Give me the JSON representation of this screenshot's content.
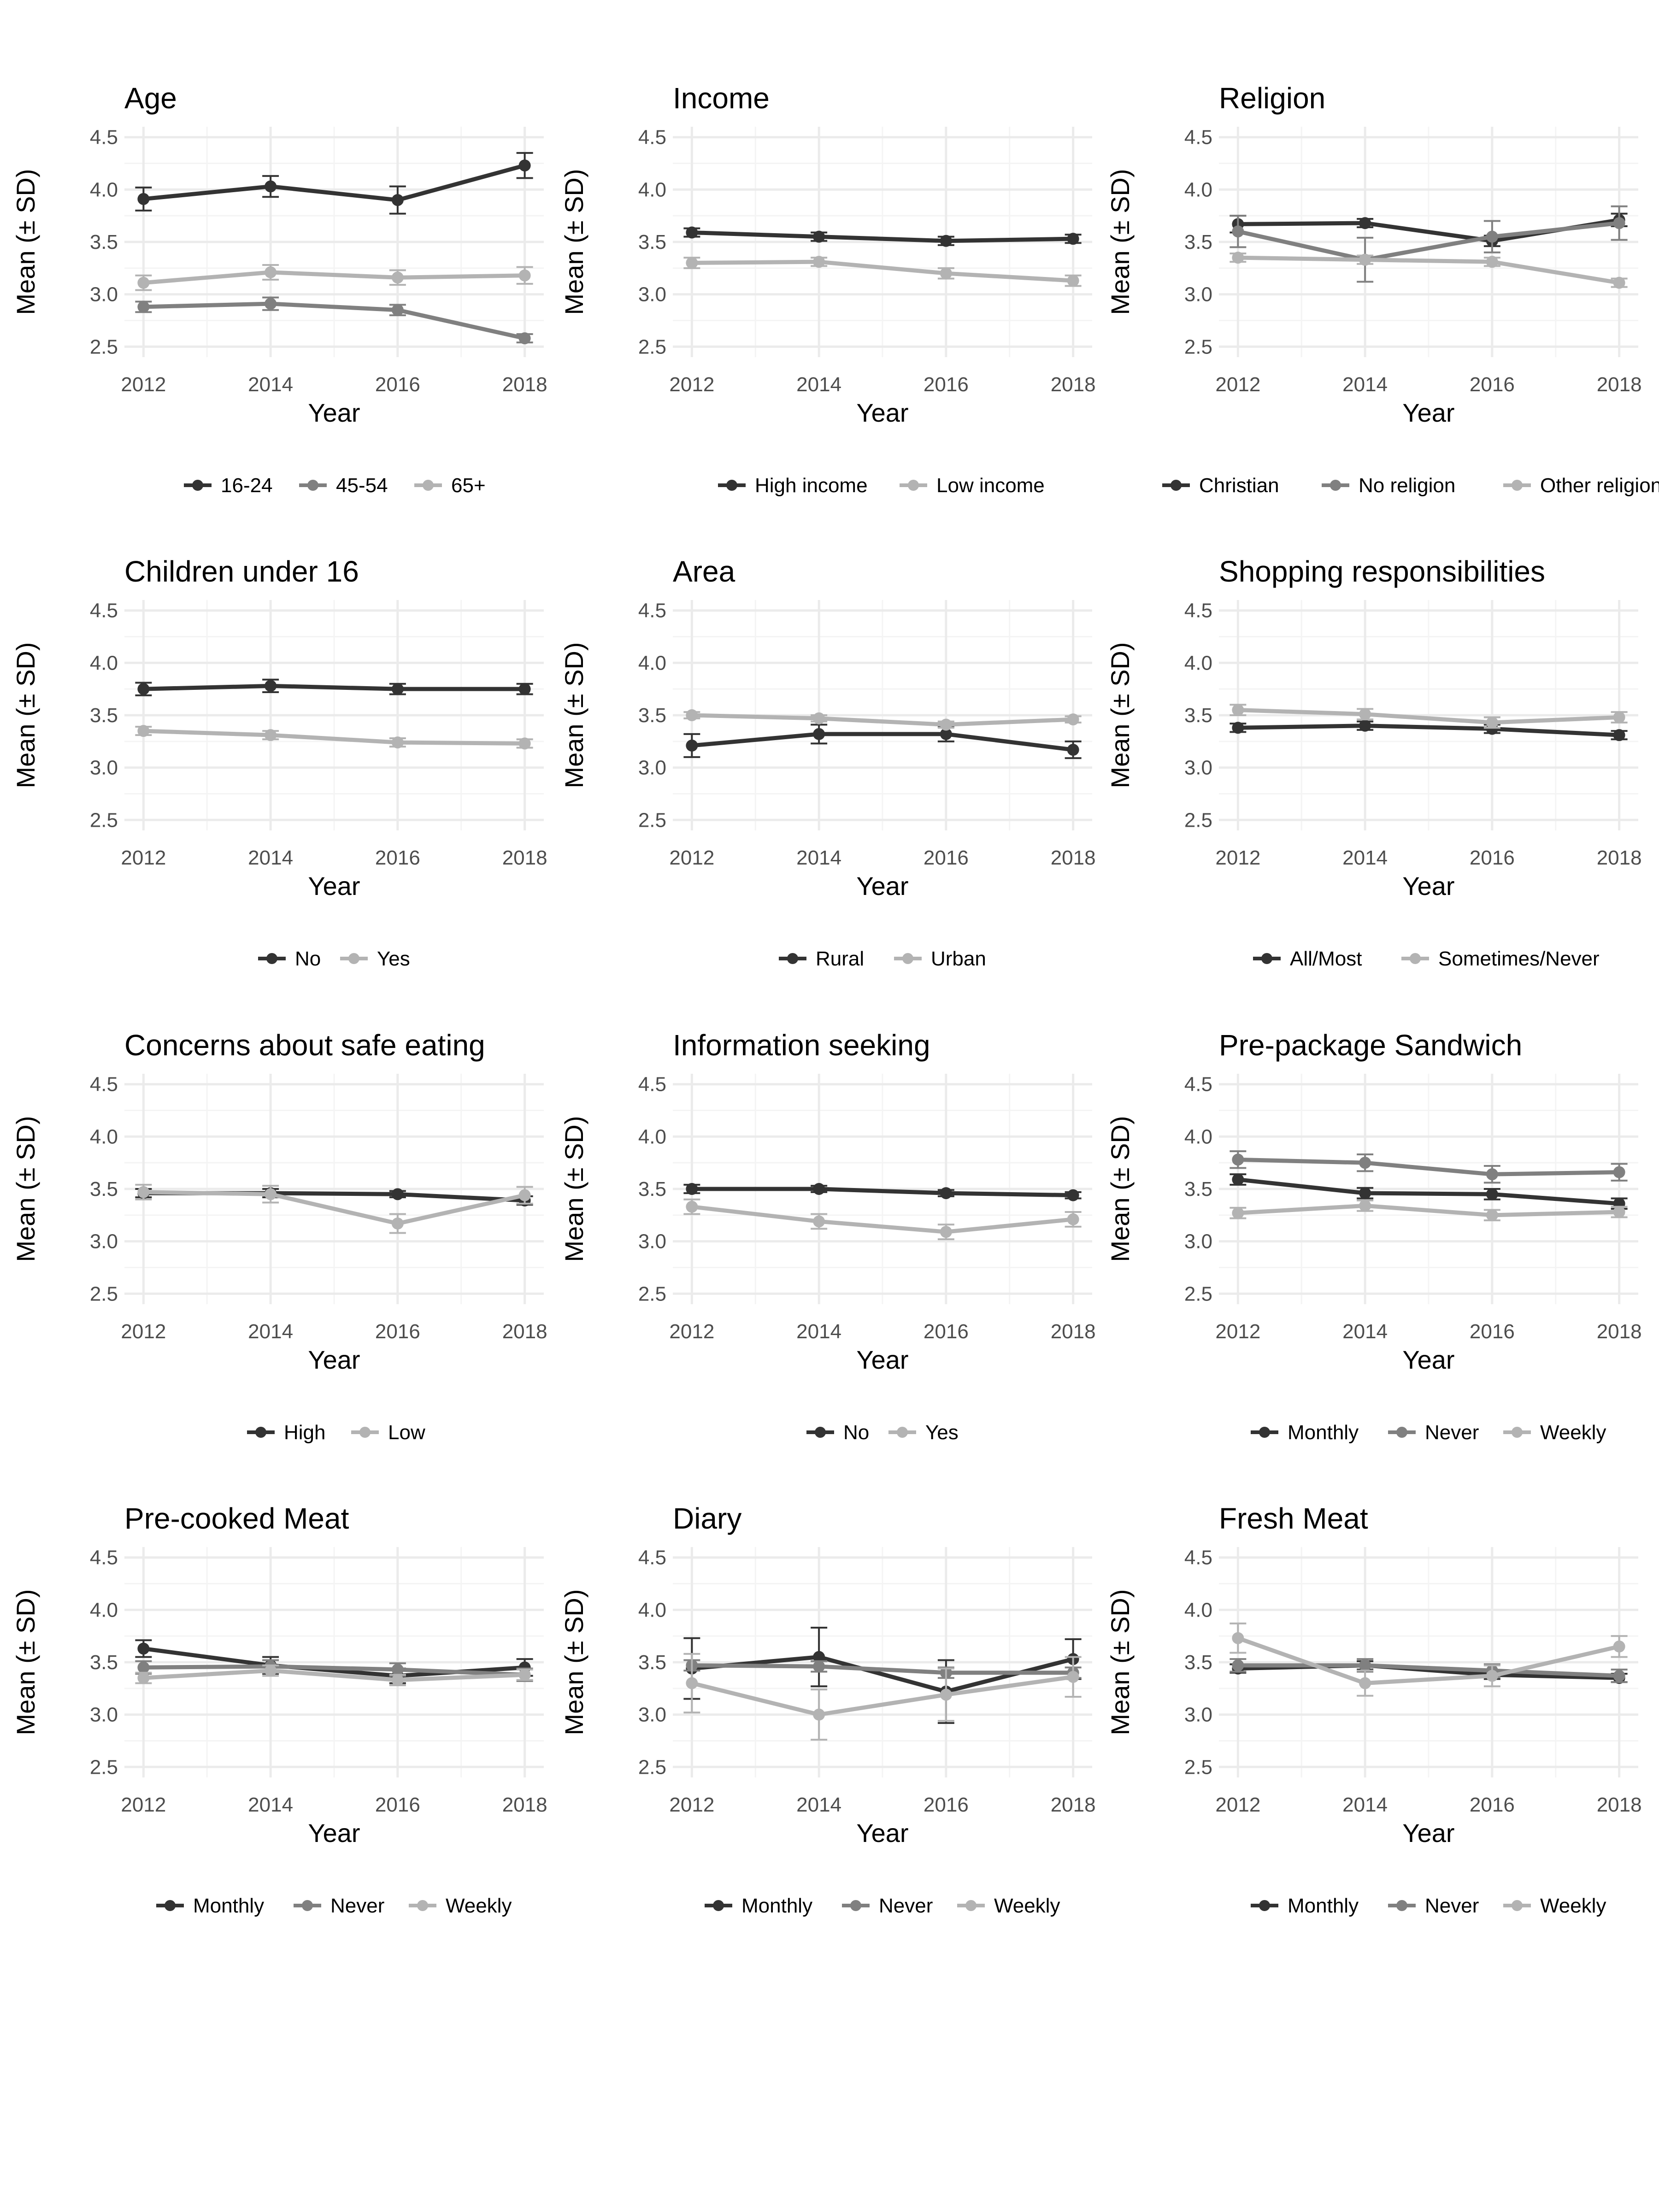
{
  "colors": {
    "dark": "#333333",
    "mid": "#808080",
    "light": "#b3b3b3",
    "grid_major": "#ebebeb",
    "grid_minor": "#f4f4f4"
  },
  "chart_data": [
    {
      "type": "line",
      "title": "Age",
      "xlabel": "Year",
      "ylabel": "Mean (± SD)",
      "x": [
        2012,
        2014,
        2016,
        2018
      ],
      "ylim": [
        2.4,
        4.6
      ],
      "yticks": [
        "2.5",
        "3.0",
        "3.5",
        "4.0",
        "4.5"
      ],
      "grid": true,
      "legend_position": "bottom",
      "series": [
        {
          "name": "16-24",
          "color": "#333333",
          "values": [
            3.91,
            4.03,
            3.9,
            4.23
          ],
          "sd": [
            0.11,
            0.1,
            0.13,
            0.12
          ]
        },
        {
          "name": "45-54",
          "color": "#808080",
          "values": [
            2.88,
            2.91,
            2.85,
            2.58
          ],
          "sd": [
            0.05,
            0.06,
            0.05,
            0.04
          ]
        },
        {
          "name": "65+",
          "color": "#b3b3b3",
          "values": [
            3.11,
            3.21,
            3.16,
            3.18
          ],
          "sd": [
            0.07,
            0.07,
            0.07,
            0.08
          ]
        }
      ]
    },
    {
      "type": "line",
      "title": "Income",
      "xlabel": "Year",
      "ylabel": "Mean (± SD)",
      "x": [
        2012,
        2014,
        2016,
        2018
      ],
      "ylim": [
        2.4,
        4.6
      ],
      "yticks": [
        "2.5",
        "3.0",
        "3.5",
        "4.0",
        "4.5"
      ],
      "grid": true,
      "legend_position": "bottom",
      "series": [
        {
          "name": "High income",
          "color": "#333333",
          "values": [
            3.59,
            3.55,
            3.51,
            3.53
          ],
          "sd": [
            0.04,
            0.04,
            0.04,
            0.04
          ]
        },
        {
          "name": "Low income",
          "color": "#b3b3b3",
          "values": [
            3.3,
            3.31,
            3.2,
            3.13
          ],
          "sd": [
            0.05,
            0.04,
            0.05,
            0.05
          ]
        }
      ]
    },
    {
      "type": "line",
      "title": "Religion",
      "xlabel": "Year",
      "ylabel": "Mean (± SD)",
      "x": [
        2012,
        2014,
        2016,
        2018
      ],
      "ylim": [
        2.4,
        4.6
      ],
      "yticks": [
        "2.5",
        "3.0",
        "3.5",
        "4.0",
        "4.5"
      ],
      "grid": true,
      "legend_position": "bottom",
      "series": [
        {
          "name": "Christian",
          "color": "#333333",
          "values": [
            3.67,
            3.68,
            3.51,
            3.71
          ],
          "sd": [
            0.08,
            0.04,
            0.05,
            0.06
          ]
        },
        {
          "name": "No religion",
          "color": "#808080",
          "values": [
            3.6,
            3.33,
            3.55,
            3.68
          ],
          "sd": [
            0.15,
            0.21,
            0.15,
            0.16
          ]
        },
        {
          "name": "Other religion",
          "color": "#b3b3b3",
          "values": [
            3.35,
            3.33,
            3.31,
            3.11
          ],
          "sd": [
            0.04,
            0.04,
            0.04,
            0.04
          ]
        }
      ]
    },
    {
      "type": "line",
      "title": "Children under 16",
      "xlabel": "Year",
      "ylabel": "Mean (± SD)",
      "x": [
        2012,
        2014,
        2016,
        2018
      ],
      "ylim": [
        2.4,
        4.6
      ],
      "yticks": [
        "2.5",
        "3.0",
        "3.5",
        "4.0",
        "4.5"
      ],
      "grid": true,
      "legend_position": "bottom",
      "series": [
        {
          "name": "No",
          "color": "#333333",
          "values": [
            3.75,
            3.78,
            3.75,
            3.75
          ],
          "sd": [
            0.06,
            0.06,
            0.05,
            0.05
          ]
        },
        {
          "name": "Yes",
          "color": "#b3b3b3",
          "values": [
            3.35,
            3.31,
            3.24,
            3.23
          ],
          "sd": [
            0.04,
            0.04,
            0.04,
            0.04
          ]
        }
      ]
    },
    {
      "type": "line",
      "title": "Area",
      "xlabel": "Year",
      "ylabel": "Mean (± SD)",
      "x": [
        2012,
        2014,
        2016,
        2018
      ],
      "ylim": [
        2.4,
        4.6
      ],
      "yticks": [
        "2.5",
        "3.0",
        "3.5",
        "4.0",
        "4.5"
      ],
      "grid": true,
      "legend_position": "bottom",
      "series": [
        {
          "name": "Rural",
          "color": "#333333",
          "values": [
            3.21,
            3.32,
            3.32,
            3.17
          ],
          "sd": [
            0.11,
            0.09,
            0.07,
            0.08
          ]
        },
        {
          "name": "Urban",
          "color": "#b3b3b3",
          "values": [
            3.5,
            3.47,
            3.41,
            3.46
          ],
          "sd": [
            0.03,
            0.03,
            0.03,
            0.03
          ]
        }
      ]
    },
    {
      "type": "line",
      "title": "Shopping responsibilities",
      "xlabel": "Year",
      "ylabel": "Mean (± SD)",
      "x": [
        2012,
        2014,
        2016,
        2018
      ],
      "ylim": [
        2.4,
        4.6
      ],
      "yticks": [
        "2.5",
        "3.0",
        "3.5",
        "4.0",
        "4.5"
      ],
      "grid": true,
      "legend_position": "bottom",
      "series": [
        {
          "name": "All/Most",
          "color": "#333333",
          "values": [
            3.38,
            3.4,
            3.37,
            3.31
          ],
          "sd": [
            0.04,
            0.04,
            0.04,
            0.04
          ]
        },
        {
          "name": "Sometimes/Never",
          "color": "#b3b3b3",
          "values": [
            3.55,
            3.51,
            3.43,
            3.48
          ],
          "sd": [
            0.05,
            0.05,
            0.05,
            0.05
          ]
        }
      ]
    },
    {
      "type": "line",
      "title": "Concerns about safe eating",
      "xlabel": "Year",
      "ylabel": "Mean (± SD)",
      "x": [
        2012,
        2014,
        2016,
        2018
      ],
      "ylim": [
        2.4,
        4.6
      ],
      "yticks": [
        "2.5",
        "3.0",
        "3.5",
        "4.0",
        "4.5"
      ],
      "grid": true,
      "legend_position": "bottom",
      "series": [
        {
          "name": "High",
          "color": "#333333",
          "values": [
            3.46,
            3.46,
            3.45,
            3.39
          ],
          "sd": [
            0.04,
            0.04,
            0.03,
            0.04
          ]
        },
        {
          "name": "Low",
          "color": "#b3b3b3",
          "values": [
            3.47,
            3.45,
            3.17,
            3.44
          ],
          "sd": [
            0.07,
            0.08,
            0.09,
            0.08
          ]
        }
      ]
    },
    {
      "type": "line",
      "title": "Information seeking",
      "xlabel": "Year",
      "ylabel": "Mean (± SD)",
      "x": [
        2012,
        2014,
        2016,
        2018
      ],
      "ylim": [
        2.4,
        4.6
      ],
      "yticks": [
        "2.5",
        "3.0",
        "3.5",
        "4.0",
        "4.5"
      ],
      "grid": true,
      "legend_position": "bottom",
      "series": [
        {
          "name": "No",
          "color": "#333333",
          "values": [
            3.5,
            3.5,
            3.46,
            3.44
          ],
          "sd": [
            0.04,
            0.03,
            0.03,
            0.03
          ]
        },
        {
          "name": "Yes",
          "color": "#b3b3b3",
          "values": [
            3.33,
            3.19,
            3.09,
            3.21
          ],
          "sd": [
            0.07,
            0.07,
            0.07,
            0.07
          ]
        }
      ]
    },
    {
      "type": "line",
      "title": "Pre-package Sandwich",
      "xlabel": "Year",
      "ylabel": "Mean (± SD)",
      "x": [
        2012,
        2014,
        2016,
        2018
      ],
      "ylim": [
        2.4,
        4.6
      ],
      "yticks": [
        "2.5",
        "3.0",
        "3.5",
        "4.0",
        "4.5"
      ],
      "grid": true,
      "legend_position": "bottom",
      "series": [
        {
          "name": "Monthly",
          "color": "#333333",
          "values": [
            3.59,
            3.46,
            3.45,
            3.36
          ],
          "sd": [
            0.05,
            0.05,
            0.05,
            0.05
          ]
        },
        {
          "name": "Never",
          "color": "#808080",
          "values": [
            3.78,
            3.75,
            3.64,
            3.66
          ],
          "sd": [
            0.08,
            0.08,
            0.08,
            0.08
          ]
        },
        {
          "name": "Weekly",
          "color": "#b3b3b3",
          "values": [
            3.27,
            3.34,
            3.25,
            3.28
          ],
          "sd": [
            0.05,
            0.05,
            0.05,
            0.05
          ]
        }
      ]
    },
    {
      "type": "line",
      "title": "Pre-cooked Meat",
      "xlabel": "Year",
      "ylabel": "Mean (± SD)",
      "x": [
        2012,
        2014,
        2016,
        2018
      ],
      "ylim": [
        2.4,
        4.6
      ],
      "yticks": [
        "2.5",
        "3.0",
        "3.5",
        "4.0",
        "4.5"
      ],
      "grid": true,
      "legend_position": "bottom",
      "series": [
        {
          "name": "Monthly",
          "color": "#333333",
          "values": [
            3.63,
            3.47,
            3.37,
            3.45
          ],
          "sd": [
            0.08,
            0.08,
            0.07,
            0.08
          ]
        },
        {
          "name": "Never",
          "color": "#808080",
          "values": [
            3.45,
            3.46,
            3.43,
            3.38
          ],
          "sd": [
            0.06,
            0.06,
            0.06,
            0.06
          ]
        },
        {
          "name": "Weekly",
          "color": "#b3b3b3",
          "values": [
            3.35,
            3.42,
            3.33,
            3.38
          ],
          "sd": [
            0.05,
            0.05,
            0.05,
            0.05
          ]
        }
      ]
    },
    {
      "type": "line",
      "title": "Diary",
      "xlabel": "Year",
      "ylabel": "Mean (± SD)",
      "x": [
        2012,
        2014,
        2016,
        2018
      ],
      "ylim": [
        2.4,
        4.6
      ],
      "yticks": [
        "2.5",
        "3.0",
        "3.5",
        "4.0",
        "4.5"
      ],
      "grid": true,
      "legend_position": "bottom",
      "series": [
        {
          "name": "Monthly",
          "color": "#333333",
          "values": [
            3.44,
            3.55,
            3.22,
            3.53
          ],
          "sd": [
            0.29,
            0.28,
            0.3,
            0.19
          ]
        },
        {
          "name": "Never",
          "color": "#808080",
          "values": [
            3.47,
            3.46,
            3.4,
            3.4
          ],
          "sd": [
            0.05,
            0.05,
            0.05,
            0.05
          ]
        },
        {
          "name": "Weekly",
          "color": "#b3b3b3",
          "values": [
            3.3,
            3.0,
            3.19,
            3.36
          ],
          "sd": [
            0.28,
            0.24,
            0.25,
            0.19
          ]
        }
      ]
    },
    {
      "type": "line",
      "title": "Fresh Meat",
      "xlabel": "Year",
      "ylabel": "Mean (± SD)",
      "x": [
        2012,
        2014,
        2016,
        2018
      ],
      "ylim": [
        2.4,
        4.6
      ],
      "yticks": [
        "2.5",
        "3.0",
        "3.5",
        "4.0",
        "4.5"
      ],
      "grid": true,
      "legend_position": "bottom",
      "series": [
        {
          "name": "Monthly",
          "color": "#333333",
          "values": [
            3.44,
            3.47,
            3.38,
            3.35
          ],
          "sd": [
            0.04,
            0.04,
            0.04,
            0.04
          ]
        },
        {
          "name": "Never",
          "color": "#808080",
          "values": [
            3.47,
            3.47,
            3.42,
            3.37
          ],
          "sd": [
            0.06,
            0.06,
            0.06,
            0.06
          ]
        },
        {
          "name": "Weekly",
          "color": "#b3b3b3",
          "values": [
            3.73,
            3.3,
            3.37,
            3.65
          ],
          "sd": [
            0.14,
            0.12,
            0.1,
            0.1
          ]
        }
      ]
    }
  ]
}
